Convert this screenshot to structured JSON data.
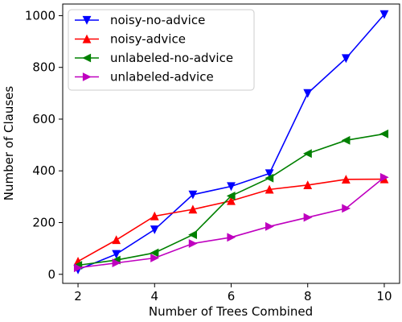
{
  "chart_data": {
    "type": "line",
    "title": "",
    "xlabel": "Number of Trees Combined",
    "ylabel": "Number of Clauses",
    "xlim": [
      1.6,
      10.4
    ],
    "ylim": [
      -35,
      1045
    ],
    "xticks": [
      2,
      4,
      6,
      8,
      10
    ],
    "yticks": [
      0,
      200,
      400,
      600,
      800,
      1000
    ],
    "xtick_labels": [
      "2",
      "4",
      "6",
      "8",
      "10"
    ],
    "ytick_labels": [
      "0",
      "200",
      "400",
      "600",
      "800",
      "1000"
    ],
    "grid": false,
    "legend_position": "top-left",
    "x": [
      2,
      3,
      4,
      5,
      6,
      7,
      8,
      9,
      10
    ],
    "series": [
      {
        "name": "noisy-no-advice",
        "color": "#0000ff",
        "marker": "triangle-down",
        "values": [
          18,
          78,
          173,
          308,
          340,
          390,
          700,
          835,
          1005
        ]
      },
      {
        "name": "noisy-advice",
        "color": "#ff0000",
        "marker": "triangle-up",
        "values": [
          50,
          133,
          225,
          251,
          284,
          328,
          345,
          367,
          368
        ]
      },
      {
        "name": "unlabeled-no-advice",
        "color": "#008000",
        "marker": "triangle-left",
        "values": [
          35,
          55,
          83,
          153,
          303,
          372,
          467,
          518,
          543
        ]
      },
      {
        "name": "unlabeled-advice",
        "color": "#bf00bf",
        "marker": "triangle-right",
        "values": [
          25,
          44,
          63,
          119,
          143,
          185,
          220,
          255,
          375
        ]
      }
    ]
  }
}
